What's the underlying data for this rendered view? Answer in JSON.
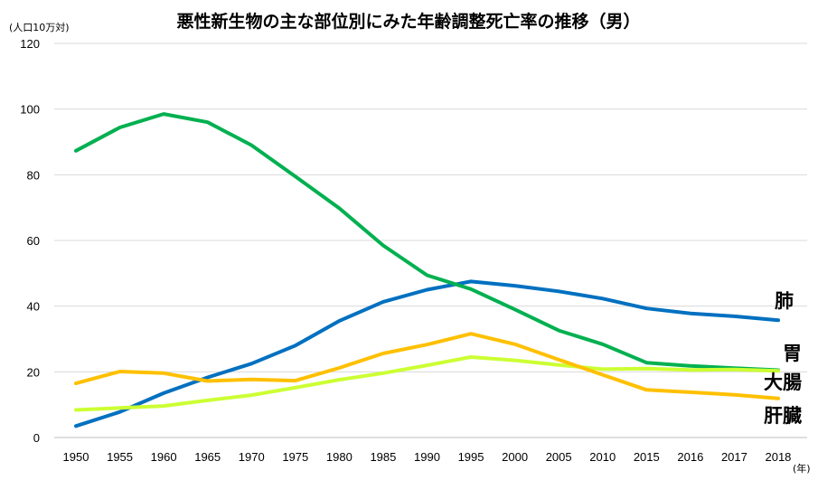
{
  "chart_data": {
    "type": "line",
    "title": "悪性新生物の主な部位別にみた年齢調整死亡率の推移（男）",
    "ylabel": "(人口10万対)",
    "xlabel": "(年)",
    "ylim": [
      0,
      120
    ],
    "yticks": [
      0,
      20,
      40,
      60,
      80,
      100,
      120
    ],
    "grid": "horizontal",
    "legend": "none",
    "categories": [
      "1950",
      "1955",
      "1960",
      "1965",
      "1970",
      "1975",
      "1980",
      "1985",
      "1990",
      "1995",
      "2000",
      "2005",
      "2010",
      "2015",
      "2016",
      "2017",
      "2018"
    ],
    "series": [
      {
        "name": "肺",
        "color": "#0070c0",
        "values": [
          3.5,
          7.8,
          13.5,
          18.3,
          22.5,
          28.0,
          35.5,
          41.3,
          45.0,
          47.5,
          46.2,
          44.5,
          42.3,
          39.3,
          37.8,
          36.9,
          35.7
        ]
      },
      {
        "name": "胃",
        "color": "#00b050",
        "values": [
          87.3,
          94.4,
          98.5,
          96.0,
          89.0,
          79.5,
          69.8,
          58.5,
          49.4,
          45.2,
          39.0,
          32.6,
          28.4,
          22.8,
          21.8,
          21.1,
          20.5
        ]
      },
      {
        "name": "大腸",
        "color": "#ccff33",
        "values": [
          8.4,
          9.0,
          9.6,
          11.3,
          12.9,
          15.2,
          17.6,
          19.6,
          22.0,
          24.5,
          23.5,
          22.1,
          20.8,
          21.0,
          20.6,
          20.7,
          20.3
        ]
      },
      {
        "name": "肝臓",
        "color": "#ffc000",
        "values": [
          16.5,
          20.1,
          19.6,
          17.2,
          17.7,
          17.3,
          21.2,
          25.6,
          28.3,
          31.6,
          28.4,
          23.7,
          19.1,
          14.5,
          13.8,
          13.0,
          11.9
        ]
      }
    ]
  }
}
